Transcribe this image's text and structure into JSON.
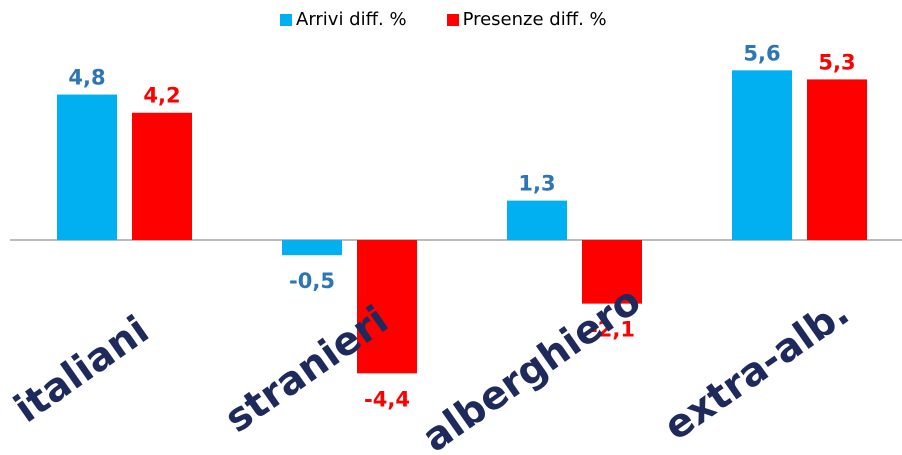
{
  "chart_data": {
    "type": "bar",
    "categories": [
      "italiani",
      "stranieri",
      "alberghiero",
      "extra-alb."
    ],
    "series": [
      {
        "name": "Arrivi diff. %",
        "values": [
          4.8,
          -0.5,
          1.3,
          5.6
        ],
        "labels": [
          "4,8",
          "-0,5",
          "1,3",
          "5,6"
        ],
        "color": "#00B0F0",
        "label_color": "#2E75B6"
      },
      {
        "name": "Presenze diff. %",
        "values": [
          4.2,
          -4.4,
          -2.1,
          5.3
        ],
        "labels": [
          "4,2",
          "-4,4",
          "-2,1",
          "5,3"
        ],
        "color": "#FF0000",
        "label_color": "#FF0000"
      }
    ],
    "axis_label_color": "#1F2A5C",
    "baseline_color": "#A6A6A6",
    "legend_position": "top"
  }
}
